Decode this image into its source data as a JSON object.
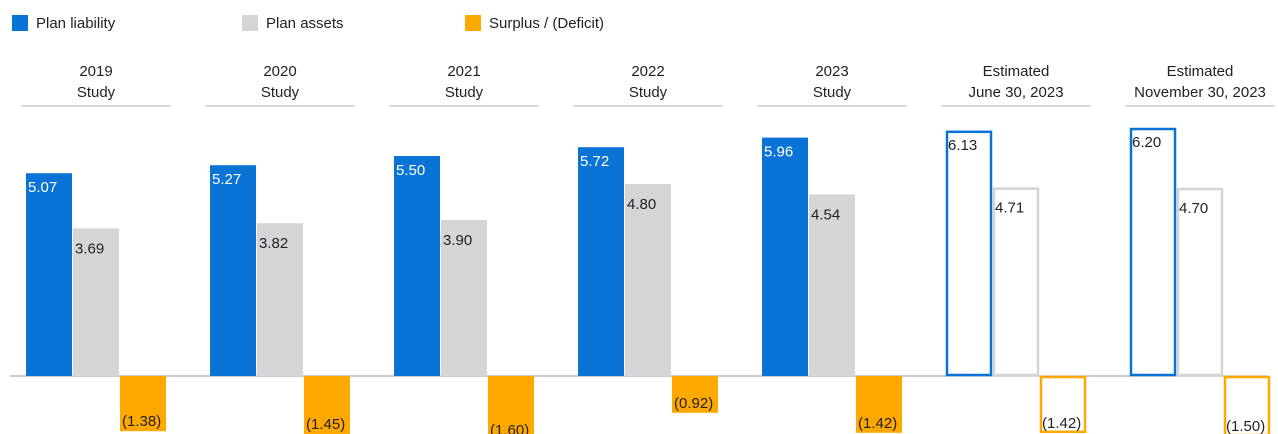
{
  "chart_data": {
    "type": "bar",
    "categories": [
      [
        "2019",
        "Study"
      ],
      [
        "2020",
        "Study"
      ],
      [
        "2021",
        "Study"
      ],
      [
        "2022",
        "Study"
      ],
      [
        "2023",
        "Study"
      ],
      [
        "Estimated",
        "June 30, 2023"
      ],
      [
        "Estimated",
        "November 30, 2023"
      ]
    ],
    "outlined": [
      false,
      false,
      false,
      false,
      false,
      true,
      true
    ],
    "series": [
      {
        "name": "Plan liability",
        "color": "#0a74d6",
        "values": [
          5.07,
          5.27,
          5.5,
          5.72,
          5.96,
          6.13,
          6.2
        ],
        "value_labels": [
          "5.07",
          "5.27",
          "5.50",
          "5.72",
          "5.96",
          "6.13",
          "6.20"
        ]
      },
      {
        "name": "Plan assets",
        "color": "#d5d5d7",
        "values": [
          3.69,
          3.82,
          3.9,
          4.8,
          4.54,
          4.71,
          4.7
        ],
        "value_labels": [
          "3.69",
          "3.82",
          "3.90",
          "4.80",
          "4.54",
          "4.71",
          "4.70"
        ]
      },
      {
        "name": "Surplus / (Deficit)",
        "color": "#ffa800",
        "values": [
          -1.38,
          -1.45,
          -1.6,
          -0.92,
          -1.42,
          -1.42,
          -1.5
        ],
        "value_labels": [
          "(1.38)",
          "(1.45)",
          "(1.60)",
          "(0.92)",
          "(1.42)",
          "(1.42)",
          "(1.50)"
        ]
      }
    ]
  }
}
